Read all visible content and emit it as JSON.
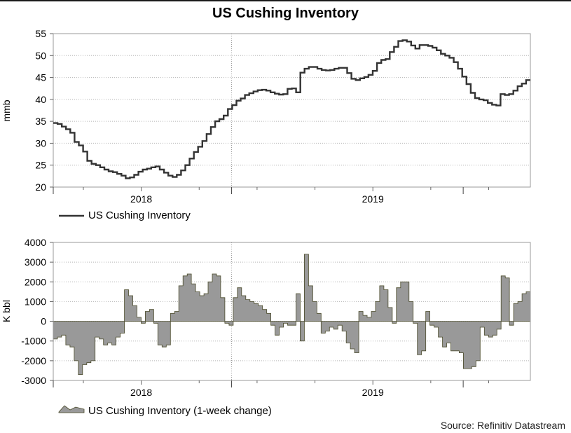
{
  "title": "US Cushing Inventory",
  "source": "Source: Refinitiv Datastream",
  "chart_data": [
    {
      "type": "line",
      "name": "level",
      "ylabel": "mmb",
      "ylim": [
        20,
        55
      ],
      "yticks": [
        20,
        25,
        30,
        35,
        40,
        45,
        50,
        55
      ],
      "xlim": [
        2017.62,
        2019.68
      ],
      "xticks": [
        {
          "label": "2018",
          "x": 2018
        },
        {
          "label": "2019",
          "x": 2019
        }
      ],
      "color": "#333333",
      "legend": "US Cushing Inventory",
      "series": [
        {
          "name": "US Cushing Inventory",
          "values": [
            34.6,
            34.4,
            33.8,
            33.2,
            32.4,
            30.3,
            29.5,
            28.1,
            26.0,
            25.3,
            25.0,
            24.5,
            24.0,
            23.6,
            23.4,
            23.0,
            22.6,
            22.0,
            22.2,
            22.8,
            23.5,
            24.0,
            24.2,
            24.5,
            24.7,
            24.0,
            23.3,
            22.6,
            22.3,
            22.8,
            23.8,
            25.0,
            26.5,
            28.0,
            29.2,
            30.5,
            32.1,
            33.7,
            35.0,
            35.5,
            36.3,
            37.8,
            38.7,
            39.7,
            40.2,
            41.0,
            41.4,
            41.8,
            42.1,
            42.2,
            42.0,
            41.6,
            41.3,
            41.1,
            41.2,
            42.4,
            42.5,
            41.6,
            46.1,
            47.0,
            47.4,
            47.4,
            47.0,
            46.7,
            46.6,
            46.7,
            47.0,
            47.2,
            47.2,
            46.0,
            44.7,
            44.4,
            44.8,
            45.1,
            45.6,
            46.5,
            48.3,
            49.0,
            49.2,
            50.8,
            52.0,
            53.3,
            53.5,
            53.2,
            52.3,
            51.6,
            52.4,
            52.4,
            52.2,
            51.8,
            51.2,
            50.4,
            50.0,
            49.5,
            48.5,
            47.0,
            45.2,
            43.5,
            41.5,
            40.3,
            40.0,
            39.8,
            39.2,
            38.8,
            38.6,
            41.2,
            41.0,
            41.2,
            42.0,
            43.0,
            43.6,
            44.4
          ]
        }
      ]
    },
    {
      "type": "area",
      "name": "change",
      "ylabel": "K bbl",
      "ylim": [
        -3000,
        4000
      ],
      "yticks": [
        -3000,
        -2000,
        -1000,
        0,
        1000,
        2000,
        3000,
        4000
      ],
      "xlim": [
        2017.62,
        2019.68
      ],
      "xticks": [
        {
          "label": "2018",
          "x": 2018
        },
        {
          "label": "2019",
          "x": 2019
        }
      ],
      "color": "#999999",
      "legend": "US Cushing Inventory (1-week change)",
      "series": [
        {
          "name": "US Cushing Inventory (1-week change)",
          "values": [
            -900,
            -800,
            -700,
            -1200,
            -1300,
            -2000,
            -2700,
            -2200,
            -2100,
            -2000,
            -800,
            -900,
            -1200,
            -1100,
            -1200,
            -800,
            -600,
            1600,
            1300,
            800,
            200,
            -100,
            500,
            600,
            -100,
            -1200,
            -1300,
            -1200,
            400,
            500,
            1800,
            2300,
            2400,
            1900,
            1500,
            1300,
            1400,
            2000,
            2400,
            2300,
            1200,
            -100,
            -200,
            1200,
            1700,
            1300,
            1100,
            1000,
            900,
            800,
            600,
            400,
            -200,
            -700,
            -300,
            -100,
            -200,
            -200,
            1400,
            -1000,
            3400,
            1800,
            1000,
            400,
            -600,
            -500,
            -300,
            -400,
            -200,
            -500,
            -1100,
            -1400,
            -1600,
            500,
            300,
            200,
            500,
            1000,
            1800,
            1600,
            700,
            -100,
            1700,
            2000,
            2000,
            1000,
            -100,
            -1700,
            -1500,
            500,
            -200,
            -300,
            -800,
            -1300,
            -1100,
            -1500,
            -1500,
            -1600,
            -2400,
            -2400,
            -2300,
            -2000,
            -300,
            -700,
            -800,
            -700,
            -400,
            2300,
            2200,
            -200,
            900,
            1000,
            1400,
            1500
          ]
        }
      ]
    }
  ]
}
